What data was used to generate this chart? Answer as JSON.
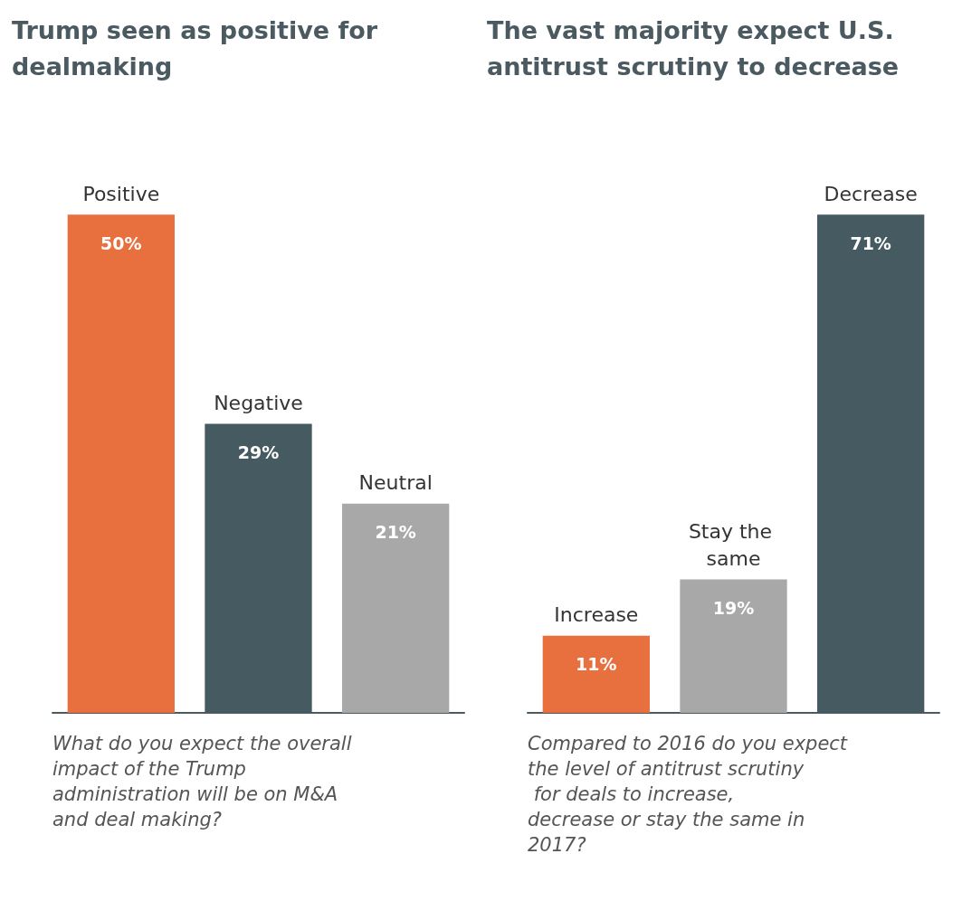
{
  "chart_data": [
    {
      "type": "bar",
      "title": "Trump seen as positive for dealmaking",
      "categories": [
        "Positive",
        "Negative",
        "Neutral"
      ],
      "values": [
        50,
        29,
        21
      ],
      "value_labels": [
        "50%",
        "29%",
        "21%"
      ],
      "colors": [
        "#e8703f",
        "#455a61",
        "#a8a8a8"
      ],
      "annotations": [
        "What do you expect the overall impact of the Trump administration will be on M&A and deal making?"
      ]
    },
    {
      "type": "bar",
      "title": "The vast majority expect U.S. antitrust scrutiny to decrease",
      "categories": [
        "Increase",
        "Stay the same",
        "Decrease"
      ],
      "values": [
        11,
        19,
        71
      ],
      "value_labels": [
        "11%",
        "19%",
        "71%"
      ],
      "colors": [
        "#e8703f",
        "#a8a8a8",
        "#455a61"
      ],
      "annotations": [
        "Compared to 2016 do you expect the level of antitrust scrutiny for deals to increase, decrease or stay the same in 2017?"
      ]
    }
  ]
}
